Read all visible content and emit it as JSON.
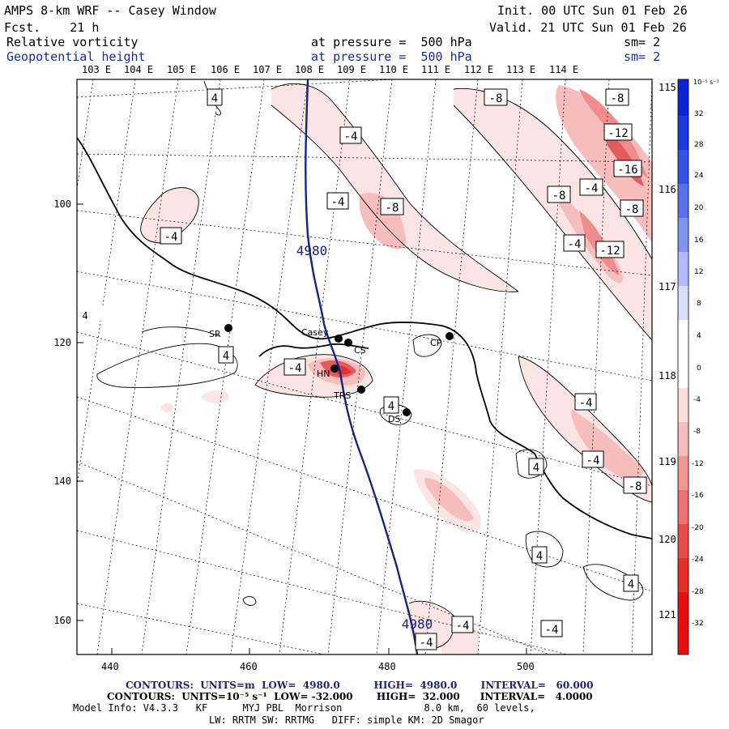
{
  "header": {
    "title_left": "AMPS 8-km WRF -- Casey Window",
    "fcst": "Fcst.    21 h",
    "init": "Init. 00 UTC Sun 01 Feb 26",
    "valid": "Valid. 21 UTC Sun 01 Feb 26",
    "field1_name": "Relative vorticity",
    "field1_level": "at pressure =  500 hPa",
    "field1_sm": "sm= 2",
    "field2_name": "Geopotential height",
    "field2_level": "at pressure =  500 hPa",
    "field2_sm": "sm= 2"
  },
  "map": {
    "top_lon_labels": [
      "103 E",
      "104 E",
      "105 E",
      "106 E",
      "107 E",
      "108 E",
      "109 E",
      "110 E",
      "111 E",
      "112 E",
      "113 E",
      "114 E"
    ],
    "right_lon_labels": [
      "115 E",
      "116 E",
      "117 E",
      "118 E",
      "119 E",
      "120 E",
      "121 E"
    ],
    "x_ticks": [
      "440",
      "460",
      "480",
      "500"
    ],
    "y_ticks": [
      "100",
      "120",
      "140",
      "160"
    ],
    "stations": [
      {
        "name": "SR"
      },
      {
        "name": "Casey"
      },
      {
        "name": "CS"
      },
      {
        "name": "CP"
      },
      {
        "name": "HN"
      },
      {
        "name": "TRS"
      },
      {
        "name": "DS"
      }
    ],
    "height_contour_label": "4980",
    "vorticity_labels": [
      "-8",
      "-8",
      "-4",
      "-4",
      "-8",
      "-4",
      "-12",
      "-16",
      "-8",
      "-4",
      "-8",
      "-4",
      "-12",
      "-4",
      "-4",
      "-4",
      "-4",
      "-8",
      "-4",
      "-4"
    ],
    "positive_labels": [
      "4",
      "4",
      "4",
      "4",
      "4",
      "4",
      "4"
    ],
    "colors": {
      "height_contour": "#1a237e",
      "negative_vorticity": "#e03030",
      "positive_vorticity": "#1a1ad6"
    }
  },
  "colorbar": {
    "unit_label": "10⁻⁵ s⁻¹",
    "ticks": [
      "32",
      "28",
      "24",
      "20",
      "16",
      "12",
      "8",
      "4",
      "0",
      "-4",
      "-8",
      "-12",
      "-16",
      "-20",
      "-24",
      "-28",
      "-32"
    ]
  },
  "footer": {
    "line1": "CONTOURS:  UNITS=m  LOW=  4980.0          HIGH=  4980.0       INTERVAL=   60.000",
    "line2": "CONTOURS:  UNITS=10⁻⁵ s⁻¹  LOW= -32.000       HIGH=  32.000      INTERVAL=   4.0000",
    "line3": "Model Info: V4.3.3   KF      MYJ PBL  Morrison              8.0 km,  60 levels,",
    "line4": "LW: RRTM SW: RRTMG   DIFF: simple KM: 2D Smagor"
  }
}
